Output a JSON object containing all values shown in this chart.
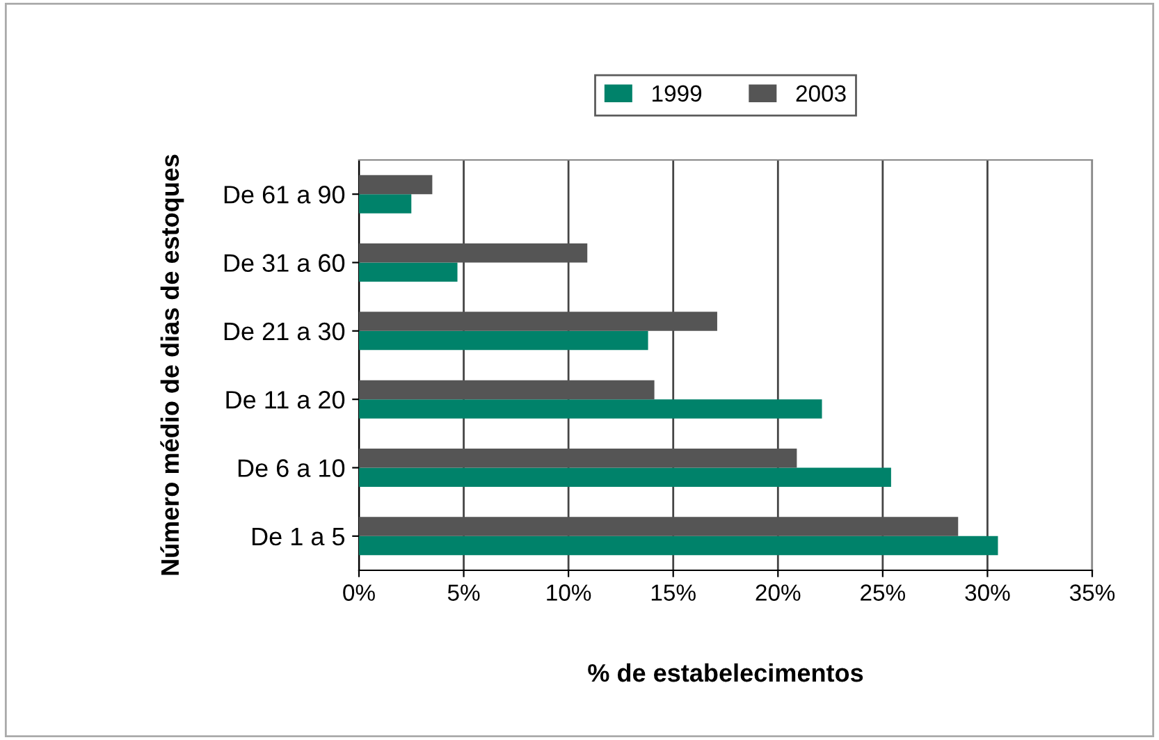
{
  "chart_data": {
    "type": "bar",
    "orientation": "horizontal",
    "xlabel": "% de estabelecimentos",
    "ylabel": "Número médio de dias de estoques",
    "categories": [
      "De 61 a 90",
      "De 31 a 60",
      "De 21 a 30",
      "De 11 a 20",
      "De 6 a 10",
      "De 1 a 5"
    ],
    "series": [
      {
        "name": "1999",
        "color": "#00826a",
        "values": [
          2.5,
          4.7,
          13.8,
          22.1,
          25.4,
          30.5
        ]
      },
      {
        "name": "2003",
        "color": "#555555",
        "values": [
          3.5,
          10.9,
          17.1,
          14.1,
          20.9,
          28.6
        ]
      }
    ],
    "xlim": [
      0,
      35
    ],
    "xticks": [
      {
        "value": 0,
        "label": "0%"
      },
      {
        "value": 5,
        "label": "5%"
      },
      {
        "value": 10,
        "label": "10%"
      },
      {
        "value": 15,
        "label": "15%"
      },
      {
        "value": 20,
        "label": "20%"
      },
      {
        "value": 25,
        "label": "25%"
      },
      {
        "value": 30,
        "label": "30%"
      },
      {
        "value": 35,
        "label": "35%"
      }
    ],
    "grid": "x",
    "legend": "top"
  }
}
